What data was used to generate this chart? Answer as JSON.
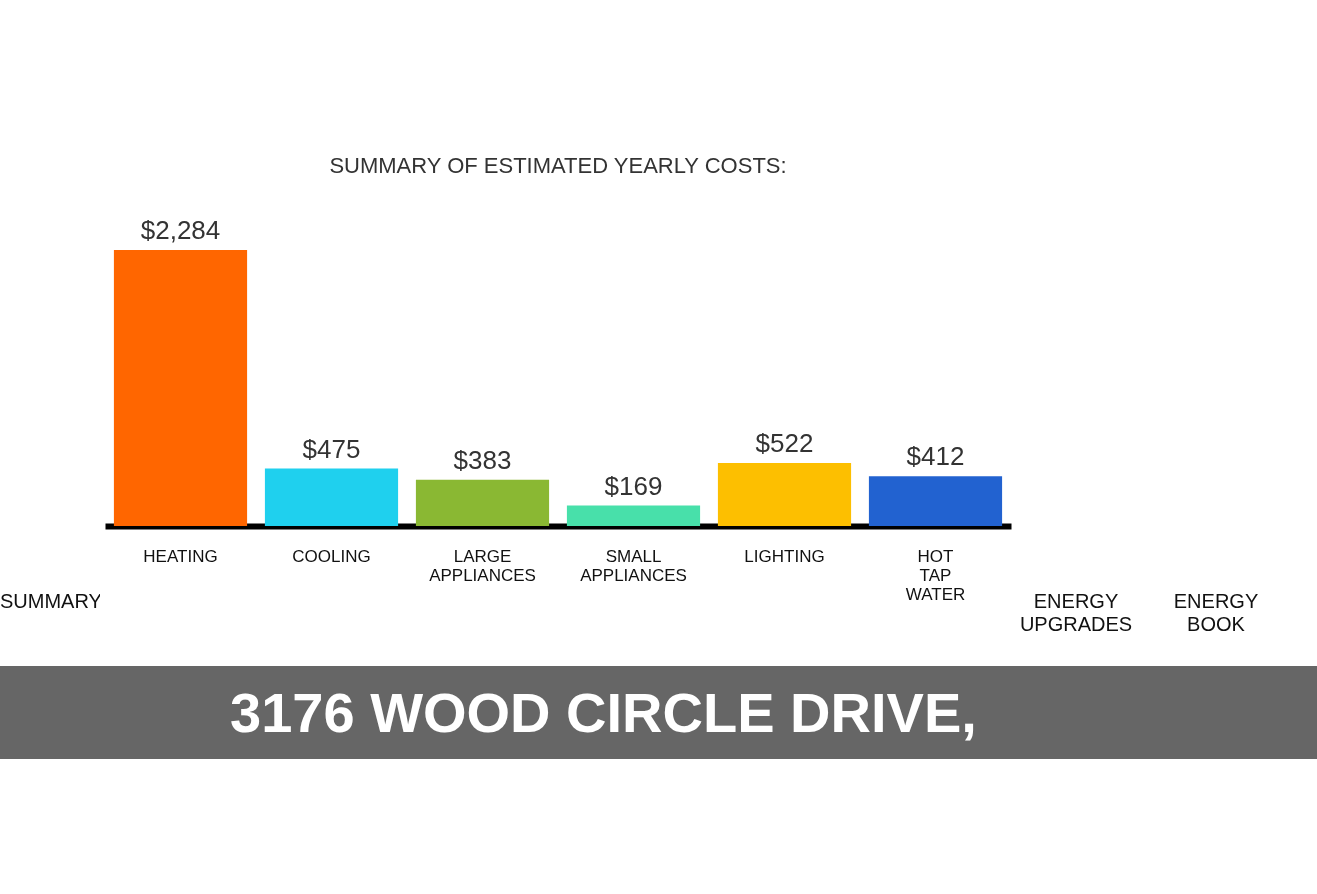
{
  "chart_data": {
    "type": "bar",
    "title": "SUMMARY OF ESTIMATED YEARLY COSTS:",
    "categories": [
      "HEATING",
      "COOLING",
      "LARGE APPLIANCES",
      "SMALL APPLIANCES",
      "LIGHTING",
      "HOT TAP WATER"
    ],
    "values": [
      2284,
      475,
      383,
      169,
      522,
      412
    ],
    "colors": [
      "#ff6600",
      "#1fd0ee",
      "#8ab833",
      "#48e0aa",
      "#fdbf00",
      "#2262d0"
    ],
    "value_labels": [
      "$2,284",
      "$475",
      "$383",
      "$169",
      "$522",
      "$412"
    ],
    "annotations": [
      "SUMMARY",
      "ENERGY UPGRADES",
      "ENERGY BOOK",
      "3176 WOOD CIRCLE DRIVE,"
    ]
  }
}
